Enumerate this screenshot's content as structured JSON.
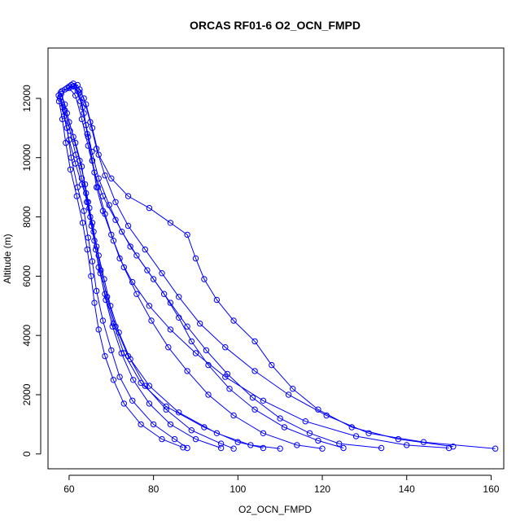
{
  "chart_data": {
    "type": "scatter",
    "title": "ORCAS RF01-6 O2_OCN_FMPD",
    "xlabel": "O2_OCN_FMPD",
    "ylabel": "Altitude (m)",
    "xlim": [
      55,
      163
    ],
    "ylim": [
      -500,
      13700
    ],
    "x_ticks": [
      60,
      80,
      100,
      120,
      140,
      160
    ],
    "y_ticks": [
      0,
      2000,
      4000,
      6000,
      8000,
      10000,
      12000
    ],
    "x_tick_labels": [
      "60",
      "80",
      "100",
      "120",
      "140",
      "160"
    ],
    "y_tick_labels": [
      "0",
      "2000",
      "4000",
      "6000",
      "8000",
      "10000",
      "12000"
    ],
    "grid": false,
    "color": "#0000ff",
    "marker": "open-circle",
    "series": [
      {
        "points": [
          [
            57.5,
            12100
          ],
          [
            58.5,
            11700
          ],
          [
            59.5,
            11000
          ],
          [
            60.5,
            10000
          ],
          [
            62,
            9000
          ],
          [
            63.5,
            8200
          ],
          [
            64.5,
            7300
          ],
          [
            65.5,
            6500
          ],
          [
            66.5,
            5500
          ],
          [
            68,
            4500
          ],
          [
            70,
            3500
          ],
          [
            72,
            2600
          ],
          [
            75,
            1800
          ],
          [
            80,
            1000
          ],
          [
            85,
            500
          ],
          [
            88,
            200
          ]
        ]
      },
      {
        "points": [
          [
            58,
            12200
          ],
          [
            59,
            11800
          ],
          [
            60,
            11200
          ],
          [
            61.5,
            10500
          ],
          [
            63,
            9700
          ],
          [
            64,
            8800
          ],
          [
            65,
            8000
          ],
          [
            66,
            7200
          ],
          [
            67,
            6300
          ],
          [
            68.5,
            5400
          ],
          [
            70.5,
            4400
          ],
          [
            73,
            3400
          ],
          [
            77,
            2400
          ],
          [
            83,
            1600
          ],
          [
            92,
            900
          ],
          [
            100,
            400
          ],
          [
            106,
            200
          ]
        ]
      },
      {
        "points": [
          [
            59,
            12300
          ],
          [
            61,
            12400
          ],
          [
            62.5,
            12200
          ],
          [
            63.5,
            11500
          ],
          [
            64.5,
            10700
          ],
          [
            65.5,
            9900
          ],
          [
            66.5,
            9000
          ],
          [
            68,
            8200
          ],
          [
            70,
            7400
          ],
          [
            72,
            6600
          ],
          [
            75,
            5800
          ],
          [
            79,
            5000
          ],
          [
            84,
            4200
          ],
          [
            90,
            3400
          ],
          [
            97,
            2600
          ],
          [
            106,
            1800
          ],
          [
            116,
            1100
          ],
          [
            128,
            600
          ],
          [
            140,
            300
          ],
          [
            150,
            200
          ]
        ]
      },
      {
        "points": [
          [
            60,
            12400
          ],
          [
            62,
            12450
          ],
          [
            63.5,
            12000
          ],
          [
            65,
            11200
          ],
          [
            66.5,
            10300
          ],
          [
            68.5,
            9400
          ],
          [
            71,
            8500
          ],
          [
            74,
            7700
          ],
          [
            78,
            6900
          ],
          [
            82,
            6100
          ],
          [
            86,
            5300
          ],
          [
            91,
            4400
          ],
          [
            97,
            3600
          ],
          [
            104,
            2800
          ],
          [
            112,
            2000
          ],
          [
            121,
            1300
          ],
          [
            131,
            700
          ],
          [
            144,
            400
          ],
          [
            161,
            180
          ]
        ]
      },
      {
        "points": [
          [
            57.8,
            12000
          ],
          [
            58.8,
            11400
          ],
          [
            60,
            10600
          ],
          [
            61.5,
            9800
          ],
          [
            63,
            9100
          ],
          [
            64.5,
            8500
          ],
          [
            65.5,
            7800
          ],
          [
            66.5,
            7000
          ],
          [
            67.5,
            6200
          ],
          [
            69,
            5300
          ],
          [
            71,
            4300
          ],
          [
            74,
            3300
          ],
          [
            79,
            2300
          ],
          [
            86,
            1400
          ],
          [
            95,
            700
          ],
          [
            103,
            300
          ],
          [
            110,
            180
          ]
        ]
      },
      {
        "points": [
          [
            58.3,
            12250
          ],
          [
            60,
            12350
          ],
          [
            61.5,
            12100
          ],
          [
            63,
            11300
          ],
          [
            64.5,
            10400
          ],
          [
            66,
            9500
          ],
          [
            68,
            8700
          ],
          [
            71,
            7900
          ],
          [
            74.5,
            7000
          ],
          [
            78.5,
            6200
          ],
          [
            82.5,
            5400
          ],
          [
            86,
            4600
          ],
          [
            89,
            3800
          ],
          [
            93,
            3000
          ],
          [
            98,
            2200
          ],
          [
            104,
            1500
          ],
          [
            111,
            900
          ],
          [
            119,
            450
          ],
          [
            125,
            200
          ]
        ]
      },
      {
        "points": [
          [
            61,
            12500
          ],
          [
            62.5,
            12300
          ],
          [
            64,
            11800
          ],
          [
            65.5,
            11000
          ],
          [
            67,
            10100
          ],
          [
            70,
            9300
          ],
          [
            74,
            8700
          ],
          [
            79,
            8300
          ],
          [
            84,
            7800
          ],
          [
            88,
            7400
          ],
          [
            90,
            6600
          ],
          [
            92,
            5900
          ],
          [
            95,
            5200
          ],
          [
            99,
            4500
          ],
          [
            104,
            3800
          ],
          [
            108,
            3000
          ],
          [
            113,
            2200
          ],
          [
            119,
            1500
          ],
          [
            127,
            900
          ],
          [
            138,
            500
          ],
          [
            151,
            250
          ]
        ]
      },
      {
        "points": [
          [
            57.6,
            11900
          ],
          [
            58.4,
            11300
          ],
          [
            59.2,
            10500
          ],
          [
            60.3,
            9600
          ],
          [
            61.8,
            8700
          ],
          [
            63.2,
            7800
          ],
          [
            64.3,
            6900
          ],
          [
            65.2,
            6000
          ],
          [
            66,
            5100
          ],
          [
            67,
            4200
          ],
          [
            68.5,
            3300
          ],
          [
            70.5,
            2500
          ],
          [
            73,
            1700
          ],
          [
            77,
            1000
          ],
          [
            82,
            500
          ],
          [
            87,
            220
          ]
        ]
      },
      {
        "points": [
          [
            58.1,
            12150
          ],
          [
            59.5,
            11500
          ],
          [
            61,
            10700
          ],
          [
            62.5,
            9900
          ],
          [
            63.8,
            9100
          ],
          [
            64.8,
            8300
          ],
          [
            65.8,
            7500
          ],
          [
            67,
            6700
          ],
          [
            68.3,
            5900
          ],
          [
            69.8,
            5000
          ],
          [
            71.8,
            4100
          ],
          [
            74.5,
            3200
          ],
          [
            78,
            2300
          ],
          [
            83,
            1500
          ],
          [
            89,
            800
          ],
          [
            96,
            350
          ],
          [
            99,
            180
          ]
        ]
      },
      {
        "points": [
          [
            59.5,
            12350
          ],
          [
            61.2,
            12420
          ],
          [
            62.7,
            11900
          ],
          [
            64,
            11100
          ],
          [
            65.4,
            10200
          ],
          [
            67,
            9300
          ],
          [
            69.5,
            8400
          ],
          [
            72.5,
            7500
          ],
          [
            76,
            6700
          ],
          [
            80,
            5900
          ],
          [
            84,
            5100
          ],
          [
            88,
            4300
          ],
          [
            92.5,
            3500
          ],
          [
            97.5,
            2700
          ],
          [
            103.5,
            1900
          ],
          [
            110,
            1200
          ],
          [
            117,
            700
          ],
          [
            124,
            350
          ],
          [
            134,
            200
          ]
        ]
      },
      {
        "points": [
          [
            60.5,
            12450
          ],
          [
            62,
            12250
          ],
          [
            63.2,
            11700
          ],
          [
            64.3,
            10800
          ],
          [
            65.5,
            9900
          ],
          [
            66.8,
            9000
          ],
          [
            68.5,
            8100
          ],
          [
            70.5,
            7200
          ],
          [
            73,
            6300
          ],
          [
            76,
            5400
          ],
          [
            79.5,
            4500
          ],
          [
            83.5,
            3600
          ],
          [
            88,
            2800
          ],
          [
            93,
            2000
          ],
          [
            99,
            1300
          ],
          [
            106,
            700
          ],
          [
            114,
            300
          ],
          [
            120,
            180
          ]
        ]
      },
      {
        "points": [
          [
            57.9,
            12050
          ],
          [
            59,
            11600
          ],
          [
            60.2,
            10900
          ],
          [
            61.6,
            10100
          ],
          [
            63,
            9300
          ],
          [
            64.2,
            8500
          ],
          [
            65.3,
            7700
          ],
          [
            66.3,
            6900
          ],
          [
            67.4,
            6100
          ],
          [
            68.7,
            5200
          ],
          [
            70.3,
            4300
          ],
          [
            72.4,
            3400
          ],
          [
            75.2,
            2500
          ],
          [
            79,
            1700
          ],
          [
            84,
            1000
          ],
          [
            90,
            500
          ],
          [
            96,
            200
          ]
        ]
      }
    ]
  }
}
